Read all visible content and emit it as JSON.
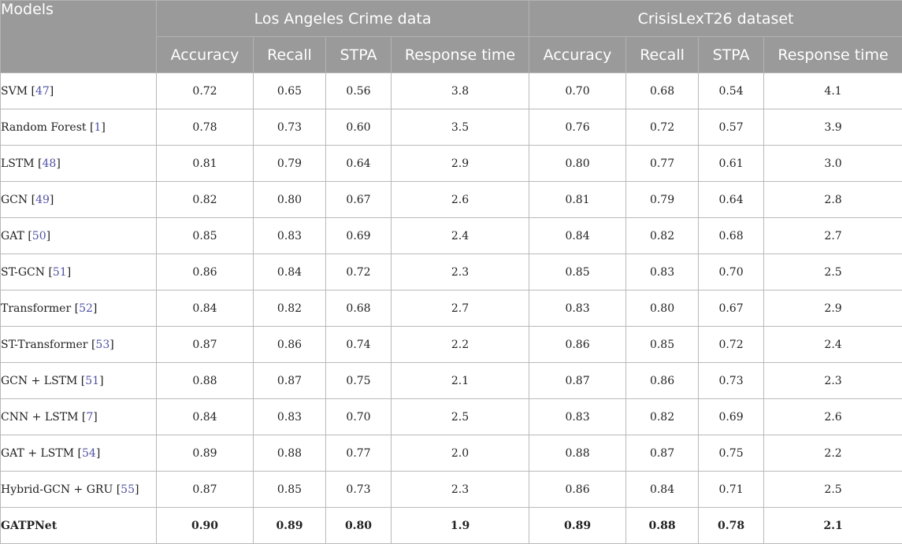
{
  "header": {
    "models_label": "Models",
    "groups": [
      "Los Angeles Crime data",
      "CrisisLexT26 dataset"
    ],
    "metrics": [
      "Accuracy",
      "Recall",
      "STPA",
      "Response time"
    ]
  },
  "rows": [
    {
      "name": "SVM",
      "ref": "47",
      "la": [
        "0.72",
        "0.65",
        "0.56",
        "3.8"
      ],
      "cl": [
        "0.70",
        "0.68",
        "0.54",
        "4.1"
      ]
    },
    {
      "name": "Random Forest",
      "ref": "1",
      "la": [
        "0.78",
        "0.73",
        "0.60",
        "3.5"
      ],
      "cl": [
        "0.76",
        "0.72",
        "0.57",
        "3.9"
      ]
    },
    {
      "name": "LSTM",
      "ref": "48",
      "la": [
        "0.81",
        "0.79",
        "0.64",
        "2.9"
      ],
      "cl": [
        "0.80",
        "0.77",
        "0.61",
        "3.0"
      ]
    },
    {
      "name": "GCN",
      "ref": "49",
      "la": [
        "0.82",
        "0.80",
        "0.67",
        "2.6"
      ],
      "cl": [
        "0.81",
        "0.79",
        "0.64",
        "2.8"
      ]
    },
    {
      "name": "GAT",
      "ref": "50",
      "la": [
        "0.85",
        "0.83",
        "0.69",
        "2.4"
      ],
      "cl": [
        "0.84",
        "0.82",
        "0.68",
        "2.7"
      ]
    },
    {
      "name": "ST-GCN",
      "ref": "51",
      "la": [
        "0.86",
        "0.84",
        "0.72",
        "2.3"
      ],
      "cl": [
        "0.85",
        "0.83",
        "0.70",
        "2.5"
      ]
    },
    {
      "name": "Transformer",
      "ref": "52",
      "la": [
        "0.84",
        "0.82",
        "0.68",
        "2.7"
      ],
      "cl": [
        "0.83",
        "0.80",
        "0.67",
        "2.9"
      ]
    },
    {
      "name": "ST-Transformer",
      "ref": "53",
      "la": [
        "0.87",
        "0.86",
        "0.74",
        "2.2"
      ],
      "cl": [
        "0.86",
        "0.85",
        "0.72",
        "2.4"
      ]
    },
    {
      "name": "GCN + LSTM",
      "ref": "51",
      "la": [
        "0.88",
        "0.87",
        "0.75",
        "2.1"
      ],
      "cl": [
        "0.87",
        "0.86",
        "0.73",
        "2.3"
      ]
    },
    {
      "name": "CNN + LSTM",
      "ref": "7",
      "la": [
        "0.84",
        "0.83",
        "0.70",
        "2.5"
      ],
      "cl": [
        "0.83",
        "0.82",
        "0.69",
        "2.6"
      ]
    },
    {
      "name": "GAT + LSTM",
      "ref": "54",
      "la": [
        "0.89",
        "0.88",
        "0.77",
        "2.0"
      ],
      "cl": [
        "0.88",
        "0.87",
        "0.75",
        "2.2"
      ]
    },
    {
      "name": "Hybrid-GCN + GRU",
      "ref": "55",
      "la": [
        "0.87",
        "0.85",
        "0.73",
        "2.3"
      ],
      "cl": [
        "0.86",
        "0.84",
        "0.71",
        "2.5"
      ]
    },
    {
      "name": "GATPNet",
      "ref": "",
      "la": [
        "0.90",
        "0.89",
        "0.80",
        "1.9"
      ],
      "cl": [
        "0.89",
        "0.88",
        "0.78",
        "2.1"
      ],
      "bold": true
    }
  ]
}
